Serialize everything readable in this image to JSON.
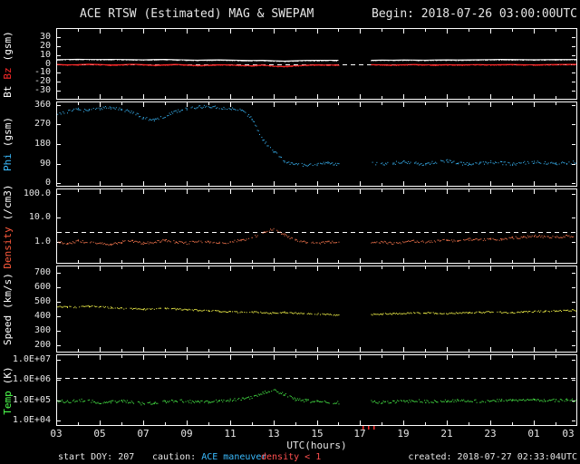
{
  "header": {
    "title": "ACE RTSW (Estimated) MAG & SWEPAM",
    "begin": "Begin: 2018-07-26 03:00:00UTC"
  },
  "footer": {
    "start_doy": "start DOY: 207",
    "caution_label": "caution:",
    "caution_value": "ACE maneuver",
    "density_warning": "density < 1",
    "created": "created: 2018-07-27 02:33:04UTC"
  },
  "colors": {
    "background": "#000000",
    "axis": "#ffffff",
    "bt": "#ffffff",
    "bz": "#ff2a2a",
    "phi": "#3bbcff",
    "density": "#ff7a50",
    "speed": "#ffff4d",
    "temp": "#4dff4d",
    "caution": "#3bbcff",
    "warning": "#ff5050",
    "maneuver_mark": "#ff3030"
  },
  "maneuver_marks": {
    "hours": [
      17.1,
      17.35,
      17.6
    ],
    "color": "#ff3030"
  },
  "x_axis": {
    "title": "UTC(hours)",
    "range": [
      3,
      27
    ],
    "tick_hours": [
      3,
      5,
      7,
      9,
      11,
      13,
      15,
      17,
      19,
      21,
      23,
      25,
      27
    ],
    "tick_labels": [
      "03",
      "05",
      "07",
      "09",
      "11",
      "13",
      "15",
      "17",
      "19",
      "21",
      "23",
      "01",
      "03"
    ],
    "sample_hours": [
      3,
      3.5,
      4,
      4.5,
      5,
      5.5,
      6,
      6.5,
      7,
      7.5,
      8,
      8.5,
      9,
      9.5,
      10,
      10.5,
      11,
      11.5,
      12,
      12.5,
      13,
      13.5,
      14,
      14.5,
      15,
      15.5,
      16,
      16.5,
      17,
      17.5,
      18,
      18.5,
      19,
      19.5,
      20,
      20.5,
      21,
      21.5,
      22,
      22.5,
      23,
      23.5,
      24,
      24.5,
      25,
      25.5,
      26,
      26.5,
      27
    ]
  },
  "chart_data": [
    {
      "name": "bt-bz",
      "type": "line",
      "scale": "linear",
      "ylim": [
        -40,
        40
      ],
      "yticks": [
        {
          "label": "30",
          "v": 30
        },
        {
          "label": "20",
          "v": 20
        },
        {
          "label": "10",
          "v": 10
        },
        {
          "label": "0",
          "v": 0
        },
        {
          "label": "-10",
          "v": -10
        },
        {
          "label": "-20",
          "v": -20
        },
        {
          "label": "-30",
          "v": -30
        }
      ],
      "dashed_at": 0,
      "ylabel_parts": [
        {
          "text": "Bt",
          "color": "#ffffff"
        },
        {
          "text": "Bz",
          "color": "#ff2a2a"
        },
        {
          "text": "(gsm)",
          "color": "#ffffff"
        }
      ],
      "series": [
        {
          "name": "Bt",
          "color": "#ffffff",
          "style": "line",
          "jitter": 0.3,
          "values": [
            4.8,
            5.0,
            5.2,
            5.0,
            4.9,
            5.1,
            5.0,
            4.8,
            4.6,
            4.9,
            5.1,
            4.7,
            4.4,
            4.2,
            4.4,
            4.6,
            4.3,
            4.0,
            3.8,
            4.1,
            3.5,
            3.2,
            3.6,
            3.9,
            4.0,
            4.1,
            4.0,
            null,
            null,
            4.1,
            4.3,
            4.2,
            4.4,
            4.3,
            4.2,
            4.4,
            4.5,
            4.4,
            4.6,
            4.7,
            4.8,
            5.0,
            4.9,
            4.8,
            4.7,
            4.8,
            4.9,
            5.0,
            5.0
          ]
        },
        {
          "name": "Bz",
          "color": "#ff2a2a",
          "style": "line",
          "jitter": 0.3,
          "values": [
            -0.5,
            -1.0,
            -0.8,
            -0.3,
            -0.6,
            -1.2,
            -0.9,
            -0.4,
            -0.8,
            -1.5,
            -1.0,
            -0.5,
            -1.2,
            -1.8,
            -1.4,
            -0.9,
            -1.1,
            -1.6,
            -2.0,
            -1.2,
            -2.5,
            -2.8,
            -2.0,
            -1.4,
            -1.0,
            -1.3,
            -1.1,
            null,
            null,
            -0.8,
            -1.0,
            -1.3,
            -0.9,
            -0.6,
            -1.0,
            -1.2,
            -0.8,
            -1.1,
            -0.9,
            -0.7,
            -1.0,
            -0.8,
            -0.6,
            -0.9,
            -1.1,
            -0.8,
            -0.6,
            -0.5,
            -0.4
          ]
        }
      ]
    },
    {
      "name": "phi",
      "type": "scatter",
      "scale": "linear",
      "ylim": [
        -15,
        375
      ],
      "yticks": [
        {
          "label": "360",
          "v": 360
        },
        {
          "label": "270",
          "v": 270
        },
        {
          "label": "180",
          "v": 180
        },
        {
          "label": "90",
          "v": 90
        },
        {
          "label": "0",
          "v": 0
        }
      ],
      "dashed_at": null,
      "ylabel_parts": [
        {
          "text": "Phi",
          "color": "#3bbcff"
        },
        {
          "text": "(gsm)",
          "color": "#ffffff"
        }
      ],
      "series": [
        {
          "name": "Phi",
          "color": "#3bbcff",
          "style": "scatter",
          "jitter": 7,
          "values": [
            320,
            330,
            340,
            335,
            345,
            350,
            340,
            330,
            300,
            290,
            310,
            330,
            345,
            350,
            355,
            350,
            345,
            340,
            300,
            200,
            150,
            100,
            90,
            85,
            90,
            95,
            90,
            null,
            null,
            95,
            90,
            95,
            100,
            95,
            90,
            100,
            105,
            95,
            90,
            95,
            100,
            95,
            90,
            95,
            100,
            95,
            90,
            95,
            100
          ]
        }
      ]
    },
    {
      "name": "density",
      "type": "scatter",
      "scale": "log",
      "ylim": [
        0.12,
        170
      ],
      "yticks": [
        {
          "label": "100.0",
          "v": 100
        },
        {
          "label": "10.0",
          "v": 10
        },
        {
          "label": "1.0",
          "v": 1
        }
      ],
      "dashed_at": 2.6,
      "ylabel_parts": [
        {
          "text": "Density",
          "color": "#ff5a3c"
        },
        {
          "text": "(/cm3)",
          "color": "#ffffff"
        }
      ],
      "series": [
        {
          "name": "Density",
          "color": "#ff7a50",
          "style": "scatter",
          "jitter": 0.05,
          "values": [
            1.0,
            0.9,
            1.1,
            1.0,
            0.9,
            0.8,
            1.0,
            1.1,
            0.9,
            1.0,
            1.2,
            1.0,
            0.9,
            1.1,
            1.0,
            0.9,
            1.0,
            1.2,
            1.5,
            2.5,
            3.5,
            2.0,
            1.2,
            1.0,
            0.9,
            1.0,
            1.0,
            null,
            null,
            0.9,
            1.0,
            0.9,
            1.0,
            1.1,
            1.0,
            1.1,
            1.2,
            1.1,
            1.3,
            1.2,
            1.4,
            1.3,
            1.5,
            1.6,
            1.8,
            1.7,
            1.6,
            1.8,
            1.7
          ]
        }
      ]
    },
    {
      "name": "speed",
      "type": "scatter",
      "scale": "linear",
      "ylim": [
        150,
        750
      ],
      "yticks": [
        {
          "label": "700",
          "v": 700
        },
        {
          "label": "600",
          "v": 600
        },
        {
          "label": "500",
          "v": 500
        },
        {
          "label": "400",
          "v": 400
        },
        {
          "label": "300",
          "v": 300
        },
        {
          "label": "200",
          "v": 200
        }
      ],
      "dashed_at": null,
      "ylabel_parts": [
        {
          "text": "Speed",
          "color": "#ffffff"
        },
        {
          "text": "(km/s)",
          "color": "#ffffff"
        }
      ],
      "series": [
        {
          "name": "Speed",
          "color": "#ffff4d",
          "style": "scatter",
          "jitter": 5,
          "values": [
            470,
            468,
            465,
            472,
            468,
            462,
            458,
            455,
            450,
            455,
            460,
            452,
            448,
            445,
            440,
            438,
            435,
            430,
            432,
            428,
            425,
            430,
            425,
            420,
            418,
            415,
            412,
            null,
            null,
            415,
            418,
            420,
            422,
            425,
            428,
            425,
            422,
            425,
            428,
            430,
            432,
            430,
            428,
            432,
            435,
            438,
            440,
            442,
            445
          ]
        }
      ]
    },
    {
      "name": "temp",
      "type": "scatter",
      "scale": "log",
      "ylim": [
        5600,
        18000000
      ],
      "yticks": [
        {
          "label": "1.0E+07",
          "v": 10000000
        },
        {
          "label": "1.0E+06",
          "v": 1000000
        },
        {
          "label": "1.0E+05",
          "v": 100000
        },
        {
          "label": "1.0E+04",
          "v": 10000
        }
      ],
      "dashed_at": 1300000,
      "ylabel_parts": [
        {
          "text": "Temp",
          "color": "#4dff4d"
        },
        {
          "text": "(K)",
          "color": "#ffffff"
        }
      ],
      "series": [
        {
          "name": "Temp",
          "color": "#4dff4d",
          "style": "scatter",
          "jitter": 0.07,
          "values": [
            100000,
            90000,
            110000,
            100000,
            80000,
            90000,
            100000,
            85000,
            70000,
            80000,
            90000,
            100000,
            95000,
            85000,
            90000,
            100000,
            110000,
            120000,
            150000,
            250000,
            350000,
            200000,
            120000,
            100000,
            90000,
            85000,
            80000,
            null,
            null,
            90000,
            85000,
            90000,
            95000,
            100000,
            95000,
            90000,
            100000,
            105000,
            100000,
            95000,
            100000,
            110000,
            100000,
            105000,
            110000,
            100000,
            105000,
            110000,
            100000
          ]
        }
      ]
    }
  ]
}
